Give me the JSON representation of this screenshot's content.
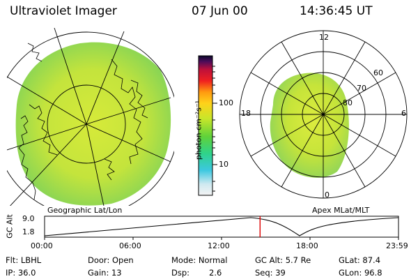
{
  "header": {
    "title": "Ultraviolet Imager",
    "date": "07 Jun 00",
    "time": "14:36:45 UT"
  },
  "colorbar": {
    "ticks": [
      "100",
      "10"
    ],
    "unit_label": "photon cm⁻²s⁻¹"
  },
  "left_map": {
    "caption": "Geographic Lat/Lon"
  },
  "right_polar": {
    "caption": "Apex MLat/MLT",
    "mlt_labels": [
      "12",
      "18",
      "6",
      "0"
    ],
    "lat_labels": [
      "60",
      "70",
      "80"
    ]
  },
  "orbit_plot": {
    "ylabel": "GC Alt",
    "y_ticks": [
      "9.0",
      "1.8"
    ],
    "x_ticks": [
      "00:00",
      "06:00",
      "12:00",
      "18:00",
      "23:59"
    ],
    "marker_time_hours": 14.6125
  },
  "footer": {
    "filter": "Flt: LBHL",
    "door": "Door: Open",
    "mode": "Mode: Normal",
    "gc_alt": "GC Alt: 5.7 Re",
    "glat": "GLat: 87.4",
    "ip": "IP: 36.0",
    "gain": "Gain: 13",
    "dsp_label": "Dsp:",
    "dsp_value": "2.6",
    "seq": "Seq: 39",
    "glon": "GLon: 96.8"
  },
  "colors": {
    "image_main": "#b6e33a",
    "image_edge": "#7fd25a",
    "marker": "#dd0000"
  }
}
